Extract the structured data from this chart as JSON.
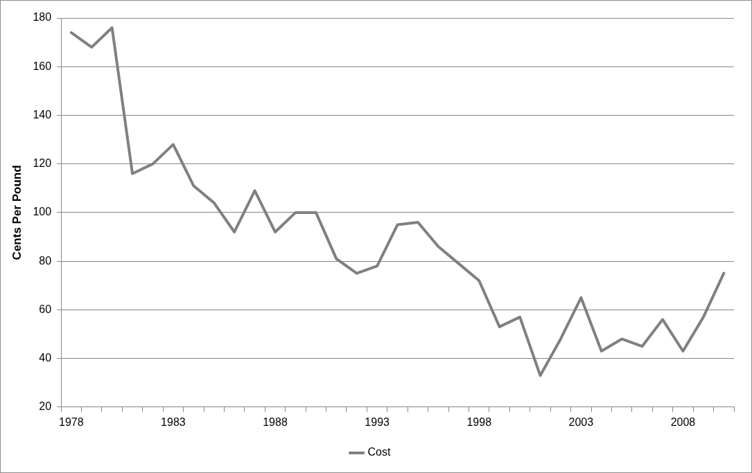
{
  "chart_data": {
    "type": "line",
    "ylabel": "Cents Per Pound",
    "categories": [
      "1978",
      null,
      null,
      null,
      null,
      "1983",
      null,
      null,
      null,
      null,
      "1988",
      null,
      null,
      null,
      null,
      "1993",
      null,
      null,
      null,
      null,
      "1998",
      null,
      null,
      null,
      null,
      "2003",
      null,
      null,
      null,
      null,
      "2008",
      null,
      null
    ],
    "series": [
      {
        "name": "Cost",
        "color": "#808080",
        "values": [
          174,
          168,
          176,
          116,
          120,
          128,
          111,
          104,
          92,
          109,
          92,
          100,
          100,
          81,
          75,
          78,
          95,
          96,
          86,
          79,
          72,
          53,
          57,
          33,
          48,
          65,
          43,
          48,
          45,
          56,
          43,
          57,
          75
        ]
      }
    ],
    "ylim": [
      20,
      180
    ],
    "yticks": [
      20,
      40,
      60,
      80,
      100,
      120,
      140,
      160,
      180
    ],
    "grid": "y",
    "legend": "bottom",
    "marker": "none",
    "line_style": "solid"
  }
}
